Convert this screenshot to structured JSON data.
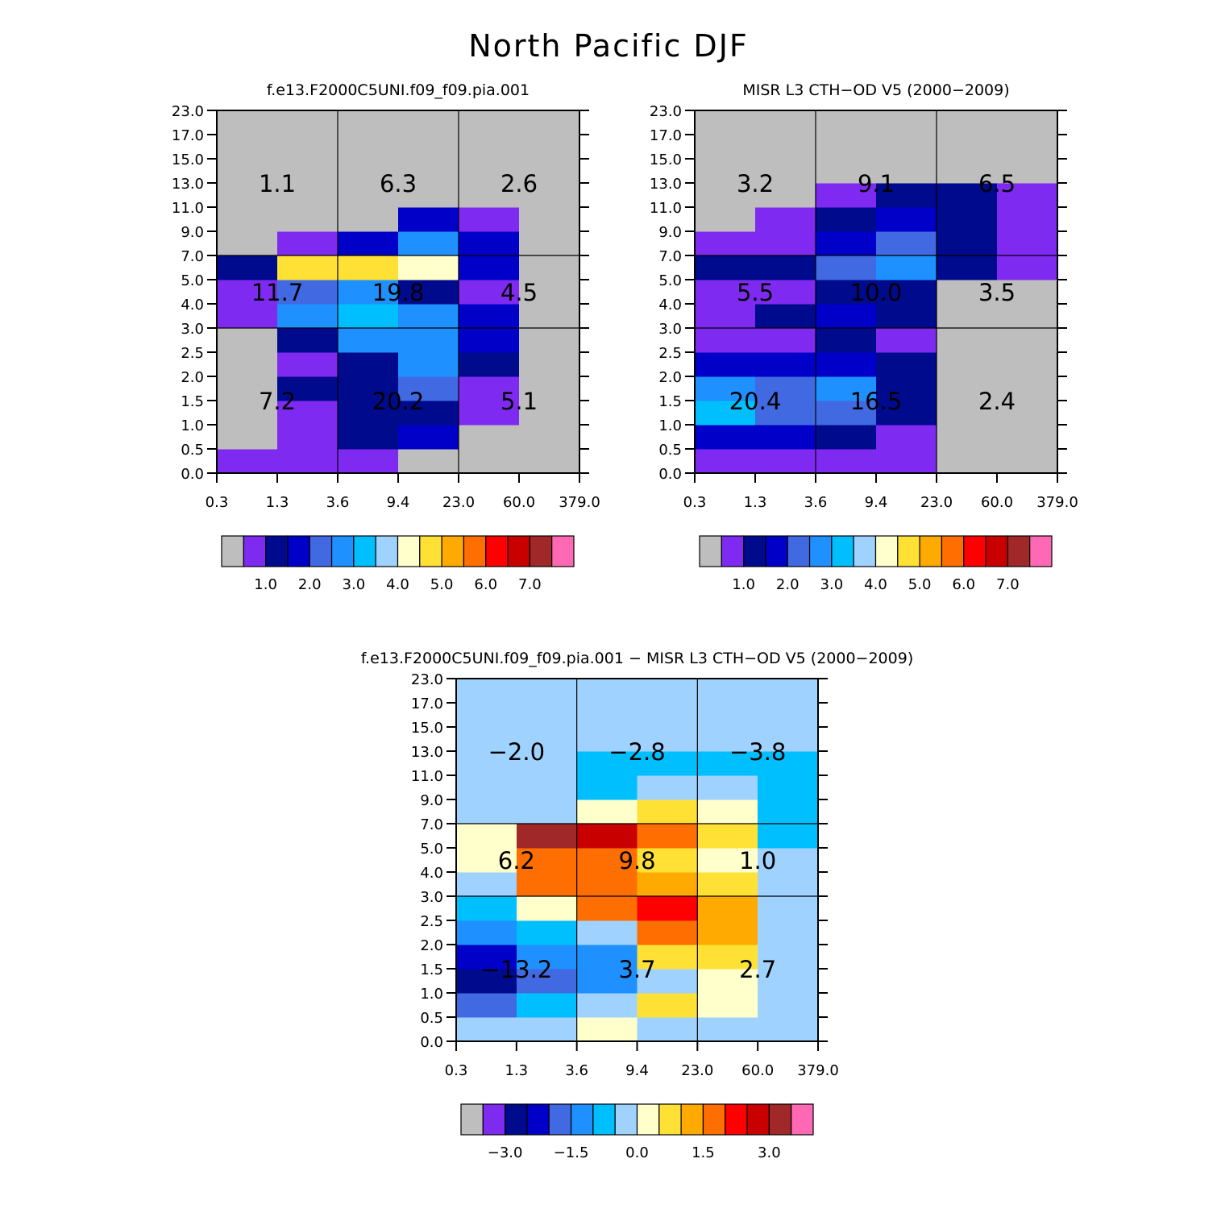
{
  "title": "North Pacific DJF",
  "chart_data": [
    {
      "type": "heatmap",
      "title": "f.e13.F2000C5UNI.f09_f09.pia.001",
      "x_edges": [
        "0.3",
        "1.3",
        "3.6",
        "9.4",
        "23.0",
        "60.0",
        "379.0"
      ],
      "y_edges": [
        "0.0",
        "0.5",
        "1.0",
        "1.5",
        "2.0",
        "2.5",
        "3.0",
        "4.0",
        "5.0",
        "7.0",
        "9.0",
        "11.0",
        "13.0",
        "15.0",
        "17.0",
        "23.0"
      ],
      "cell_level_note": "rows bottom-to-top, columns left-to-right; value = colorbar bin index",
      "cells": [
        [
          1,
          1,
          1,
          0,
          0,
          0
        ],
        [
          0,
          1,
          2,
          3,
          0,
          0
        ],
        [
          0,
          1,
          2,
          2,
          1,
          0
        ],
        [
          0,
          2,
          2,
          4,
          1,
          0
        ],
        [
          0,
          1,
          2,
          5,
          2,
          0
        ],
        [
          0,
          2,
          5,
          5,
          3,
          0
        ],
        [
          1,
          5,
          6,
          5,
          3,
          0
        ],
        [
          1,
          4,
          5,
          2,
          1,
          0
        ],
        [
          2,
          9,
          9,
          8,
          3,
          0
        ],
        [
          0,
          1,
          3,
          5,
          3,
          0
        ],
        [
          0,
          0,
          0,
          3,
          1,
          0
        ],
        [
          0,
          0,
          0,
          0,
          0,
          0
        ],
        [
          0,
          0,
          0,
          0,
          0,
          0
        ],
        [
          0,
          0,
          0,
          0,
          0,
          0
        ],
        [
          0,
          0,
          0,
          0,
          0,
          0
        ]
      ],
      "summary": [
        [
          "7.2",
          "20.2",
          "5.1"
        ],
        [
          "11.7",
          "19.8",
          "4.5"
        ],
        [
          "1.1",
          "6.3",
          "2.6"
        ]
      ],
      "colorbar": {
        "colors": [
          "#bebebe",
          "#7f2af0",
          "#000a8c",
          "#0000c8",
          "#4169e1",
          "#1e90ff",
          "#00bfff",
          "#a0d2ff",
          "#ffffcc",
          "#ffe135",
          "#ffaa00",
          "#ff6e00",
          "#ff0000",
          "#c80000",
          "#a02828",
          "#ff69b4"
        ],
        "tick_labels": [
          "1.0",
          "2.0",
          "3.0",
          "4.0",
          "5.0",
          "6.0",
          "7.0"
        ]
      }
    },
    {
      "type": "heatmap",
      "title": "MISR L3 CTH-OD V5 (2000-2009)",
      "x_edges": [
        "0.3",
        "1.3",
        "3.6",
        "9.4",
        "23.0",
        "60.0",
        "379.0"
      ],
      "y_edges": [
        "0.0",
        "0.5",
        "1.0",
        "1.5",
        "2.0",
        "2.5",
        "3.0",
        "4.0",
        "5.0",
        "7.0",
        "9.0",
        "11.0",
        "13.0",
        "15.0",
        "17.0",
        "23.0"
      ],
      "cell_level_note": "rows bottom-to-top, columns left-to-right; value = colorbar bin index",
      "cells": [
        [
          1,
          1,
          1,
          1,
          0,
          0
        ],
        [
          3,
          3,
          2,
          1,
          0,
          0
        ],
        [
          6,
          4,
          4,
          2,
          0,
          0
        ],
        [
          5,
          4,
          5,
          2,
          0,
          0
        ],
        [
          3,
          3,
          3,
          2,
          0,
          0
        ],
        [
          1,
          1,
          2,
          1,
          0,
          0
        ],
        [
          1,
          2,
          3,
          2,
          0,
          0
        ],
        [
          1,
          1,
          2,
          2,
          0,
          0
        ],
        [
          2,
          2,
          4,
          5,
          2,
          1
        ],
        [
          1,
          1,
          3,
          4,
          2,
          1
        ],
        [
          0,
          1,
          2,
          3,
          2,
          1
        ],
        [
          0,
          0,
          1,
          2,
          2,
          1
        ],
        [
          0,
          0,
          0,
          0,
          0,
          0
        ],
        [
          0,
          0,
          0,
          0,
          0,
          0
        ],
        [
          0,
          0,
          0,
          0,
          0,
          0
        ]
      ],
      "summary": [
        [
          "20.4",
          "16.5",
          "2.4"
        ],
        [
          "5.5",
          "10.0",
          "3.5"
        ],
        [
          "3.2",
          "9.1",
          "6.5"
        ]
      ],
      "colorbar": {
        "colors": [
          "#bebebe",
          "#7f2af0",
          "#000a8c",
          "#0000c8",
          "#4169e1",
          "#1e90ff",
          "#00bfff",
          "#a0d2ff",
          "#ffffcc",
          "#ffe135",
          "#ffaa00",
          "#ff6e00",
          "#ff0000",
          "#c80000",
          "#a02828",
          "#ff69b4"
        ],
        "tick_labels": [
          "1.0",
          "2.0",
          "3.0",
          "4.0",
          "5.0",
          "6.0",
          "7.0"
        ]
      }
    },
    {
      "type": "heatmap",
      "title": "f.e13.F2000C5UNI.f09_f09.pia.001 - MISR L3 CTH-OD V5 (2000-2009)",
      "x_edges": [
        "0.3",
        "1.3",
        "3.6",
        "9.4",
        "23.0",
        "60.0",
        "379.0"
      ],
      "y_edges": [
        "0.0",
        "0.5",
        "1.0",
        "1.5",
        "2.0",
        "2.5",
        "3.0",
        "4.0",
        "5.0",
        "7.0",
        "9.0",
        "11.0",
        "13.0",
        "15.0",
        "17.0",
        "23.0"
      ],
      "cell_level_note": "rows bottom-to-top, columns left-to-right; value = colorbar bin index",
      "cells": [
        [
          7,
          7,
          8,
          7,
          7,
          7
        ],
        [
          4,
          6,
          7,
          9,
          8,
          7
        ],
        [
          2,
          4,
          5,
          7,
          8,
          7
        ],
        [
          3,
          5,
          5,
          9,
          9,
          7
        ],
        [
          5,
          6,
          7,
          11,
          10,
          7
        ],
        [
          6,
          8,
          11,
          12,
          10,
          7
        ],
        [
          7,
          11,
          11,
          10,
          9,
          7
        ],
        [
          8,
          11,
          11,
          9,
          8,
          7
        ],
        [
          8,
          14,
          13,
          11,
          9,
          6
        ],
        [
          7,
          7,
          8,
          9,
          8,
          6
        ],
        [
          7,
          7,
          6,
          7,
          7,
          6
        ],
        [
          7,
          7,
          6,
          6,
          6,
          6
        ],
        [
          7,
          7,
          7,
          7,
          7,
          7
        ],
        [
          7,
          7,
          7,
          7,
          7,
          7
        ],
        [
          7,
          7,
          7,
          7,
          7,
          7
        ]
      ],
      "summary": [
        [
          "-13.2",
          "3.7",
          "2.7"
        ],
        [
          "6.2",
          "9.8",
          "1.0"
        ],
        [
          "-2.0",
          "-2.8",
          "-3.8"
        ]
      ],
      "colorbar": {
        "colors": [
          "#bebebe",
          "#7f2af0",
          "#000a8c",
          "#0000c8",
          "#4169e1",
          "#1e90ff",
          "#00bfff",
          "#a0d2ff",
          "#ffffcc",
          "#ffe135",
          "#ffaa00",
          "#ff6e00",
          "#ff0000",
          "#c80000",
          "#a02828",
          "#ff69b4"
        ],
        "tick_labels": [
          "-3.0",
          "-1.5",
          "0.0",
          "1.5",
          "3.0"
        ]
      }
    }
  ]
}
